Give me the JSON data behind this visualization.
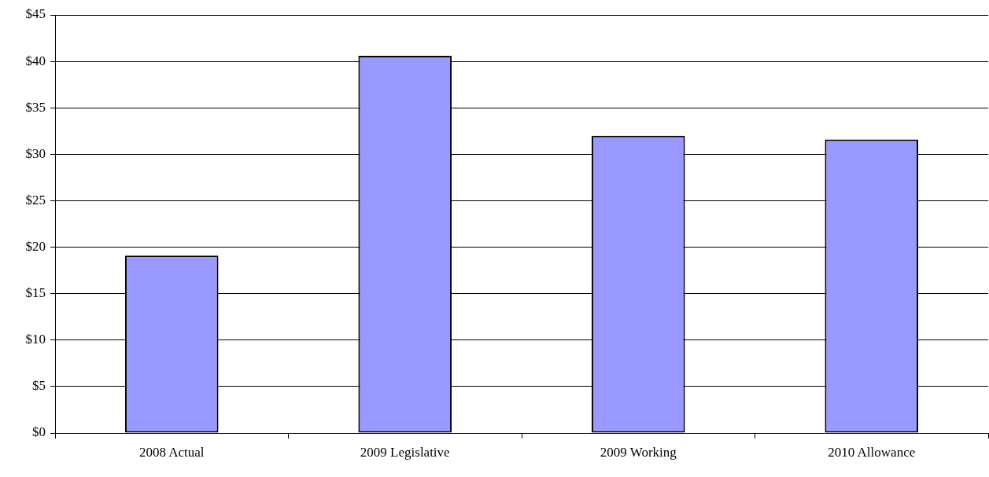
{
  "chart_data": {
    "type": "bar",
    "categories": [
      "2008 Actual",
      "2009 Legislative",
      "2009 Working",
      "2010 Allowance"
    ],
    "values": [
      19.1,
      40.6,
      32.0,
      31.6
    ],
    "color": "#9999ff",
    "ylim": [
      0,
      45
    ],
    "yticks": [
      {
        "value": 0,
        "label": "$0"
      },
      {
        "value": 5,
        "label": "$5"
      },
      {
        "value": 10,
        "label": "$10"
      },
      {
        "value": 15,
        "label": "$15"
      },
      {
        "value": 20,
        "label": "$20"
      },
      {
        "value": 25,
        "label": "$25"
      },
      {
        "value": 30,
        "label": "$30"
      },
      {
        "value": 35,
        "label": "$35"
      },
      {
        "value": 40,
        "label": "$40"
      },
      {
        "value": 45,
        "label": "$45"
      }
    ],
    "grid": "y",
    "legend": false
  }
}
